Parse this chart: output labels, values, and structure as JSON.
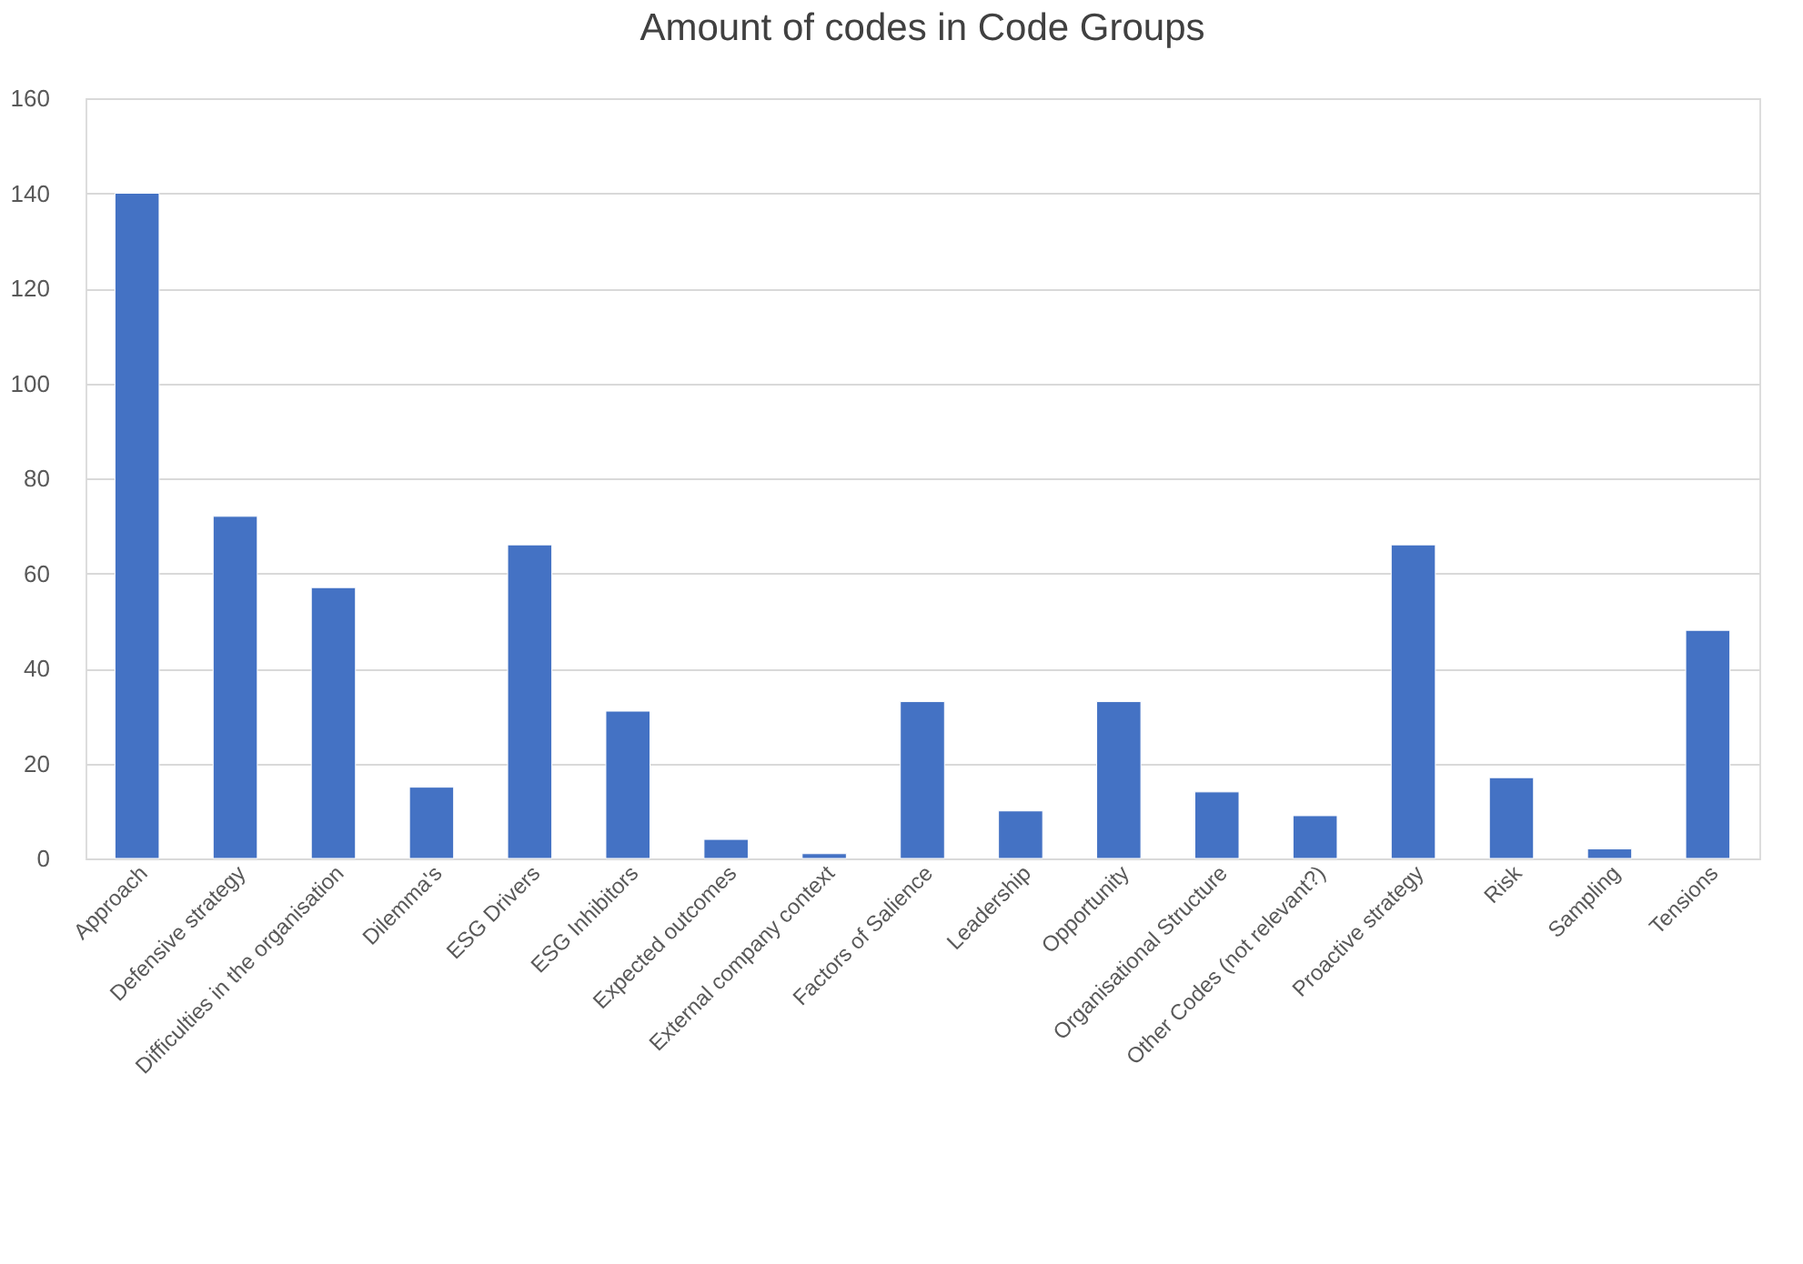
{
  "chart_data": {
    "type": "bar",
    "title": "Amount of codes in Code Groups",
    "categories": [
      "Approach",
      "Defensive strategy",
      "Difficulties in the organisation",
      "Dilemma's",
      "ESG Drivers",
      "ESG Inhibitors",
      "Expected outcomes",
      "External company context",
      "Factors of Salience",
      "Leadership",
      "Opportunity",
      "Organisational Structure",
      "Other Codes (not relevant?)",
      "Proactive strategy",
      "Risk",
      "Sampling",
      "Tensions"
    ],
    "values": [
      140,
      72,
      57,
      15,
      66,
      31,
      4,
      1,
      33,
      10,
      33,
      14,
      9,
      66,
      17,
      2,
      48
    ],
    "color": "#4472c4",
    "ylim": [
      0,
      160
    ],
    "yticks": [
      0,
      20,
      40,
      60,
      80,
      100,
      120,
      140,
      160
    ],
    "grid": "y"
  }
}
